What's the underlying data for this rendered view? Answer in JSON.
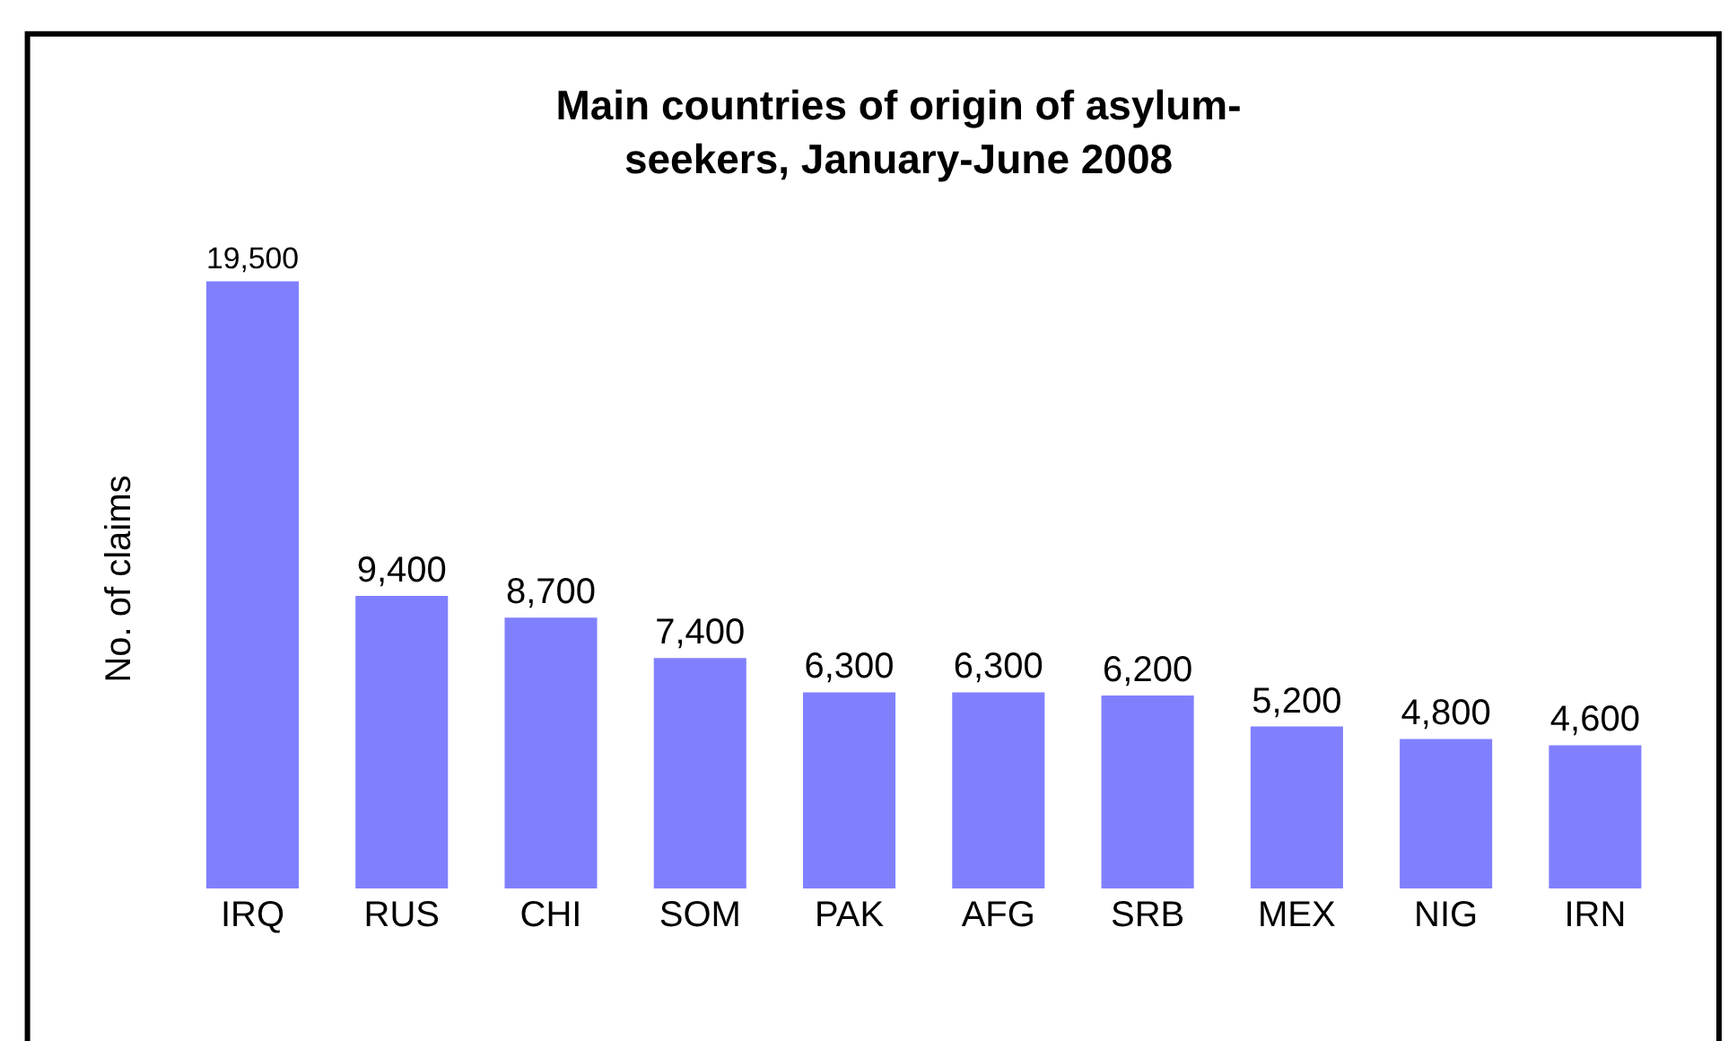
{
  "chart_data": {
    "type": "bar",
    "title": "Main countries of origin of asylum-\nseekers, January-June 2008",
    "ylabel": "No. of claims",
    "categories": [
      "IRQ",
      "RUS",
      "CHI",
      "SOM",
      "PAK",
      "AFG",
      "SRB",
      "MEX",
      "NIG",
      "IRN"
    ],
    "values": [
      19500,
      9400,
      8700,
      7400,
      6300,
      6300,
      6200,
      5200,
      4800,
      4600
    ],
    "value_labels": [
      "19,500",
      "9,400",
      "8,700",
      "7,400",
      "6,300",
      "6,300",
      "6,200",
      "5,200",
      "4,800",
      "4,600"
    ],
    "color": "#8080ff",
    "legend": false
  }
}
